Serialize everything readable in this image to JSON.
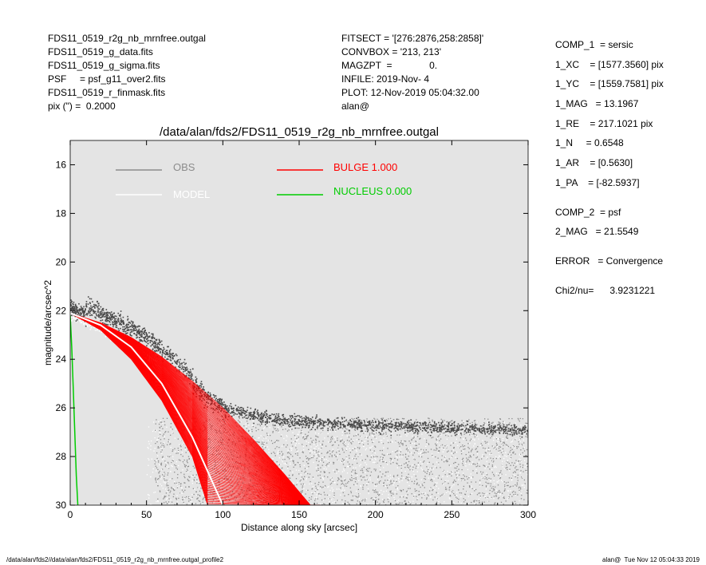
{
  "header_left": [
    "FDS11_0519_r2g_nb_mrnfree.outgal",
    "FDS11_0519_g_data.fits",
    "FDS11_0519_g_sigma.fits",
    "PSF     = psf_g11_over2.fits",
    "FDS11_0519_r_finmask.fits",
    "pix (\") =  0.2000"
  ],
  "header_mid": [
    "FITSECT = '[276:2876,258:2858]'",
    "CONVBOX = '213, 213'",
    "MAGZPT  =              0.",
    "INFILE: 2019-Nov- 4",
    "PLOT: 12-Nov-2019 05:04:32.00",
    "alan@"
  ],
  "comp1": [
    "COMP_1  = sersic",
    "1_XC    = [1577.3560] pix",
    "1_YC    = [1559.7581] pix",
    "1_MAG   = 13.1967",
    "1_RE    = 217.1021 pix",
    "1_N     = 0.6548",
    "1_AR    = [0.5630]",
    "1_PA    = [-82.5937]"
  ],
  "comp2": [
    "COMP_2  = psf",
    "2_MAG   = 21.5549"
  ],
  "error_line": "ERROR   = Convergence",
  "chi2_line": "Chi2/nu=      3.9231221",
  "footer_left": "/data/alan/fds2//data/alan/fds2/FDS11_0519_r2g_nb_mrnfree.outgal_profile2",
  "footer_right": "alan@  Tue Nov 12 05:04:33 2019",
  "colors": {
    "plot_bg": "#e4e4e4",
    "obs": "#4a4a4a",
    "obs_faint": "#8c8c8c",
    "model": "#ffffff",
    "bulge": "#ff0000",
    "nucleus": "#00cc00"
  },
  "chart_data": {
    "type": "scatter",
    "title": "/data/alan/fds2/FDS11_0519_r2g_nb_mrnfree.outgal",
    "xlabel": "Distance along sky [arcsec]",
    "ylabel": "magnitude/arcsec^2",
    "xlim": [
      0,
      300
    ],
    "ylim": [
      30,
      15
    ],
    "y_inverted": true,
    "xticks": [
      0,
      50,
      100,
      150,
      200,
      250,
      300
    ],
    "yticks": [
      16,
      18,
      20,
      22,
      24,
      26,
      28,
      30
    ],
    "grid": false,
    "legend": [
      {
        "label": "OBS",
        "color": "#8c8c8c"
      },
      {
        "label": "MODEL",
        "color": "#ffffff"
      },
      {
        "label": "BULGE  1.000",
        "color": "#ff0000"
      },
      {
        "label": "NUCLEUS  0.000",
        "color": "#00cc00"
      }
    ],
    "series": [
      {
        "name": "OBS",
        "x": [
          0,
          10,
          20,
          30,
          40,
          50,
          60,
          70,
          80,
          90,
          100,
          120,
          140,
          160,
          200,
          250,
          300
        ],
        "y": [
          21.9,
          22.1,
          22.4,
          22.7,
          23.0,
          23.4,
          23.9,
          24.4,
          25.0,
          25.6,
          26.0,
          26.3,
          26.5,
          26.6,
          26.7,
          26.8,
          26.9
        ]
      },
      {
        "name": "MODEL",
        "x": [
          0,
          20,
          40,
          60,
          80,
          100
        ],
        "y": [
          22.1,
          22.6,
          23.5,
          25.0,
          27.2,
          30.0
        ]
      },
      {
        "name": "BULGE  1.000",
        "band_outer_x": [
          0,
          20,
          40,
          60,
          80,
          100,
          120,
          140,
          160
        ],
        "band_outer_y": [
          22.1,
          22.5,
          23.1,
          23.9,
          24.9,
          26.0,
          27.3,
          28.7,
          30.2
        ],
        "band_inner_x": [
          0,
          20,
          40,
          60,
          80,
          90
        ],
        "band_inner_y": [
          22.1,
          22.8,
          24.0,
          25.7,
          28.0,
          30.0
        ]
      },
      {
        "name": "NUCLEUS  0.000",
        "x": [
          0,
          1,
          2,
          3,
          4,
          5
        ],
        "y": [
          22.2,
          23.5,
          25.2,
          27.0,
          28.8,
          30.0
        ]
      }
    ]
  }
}
